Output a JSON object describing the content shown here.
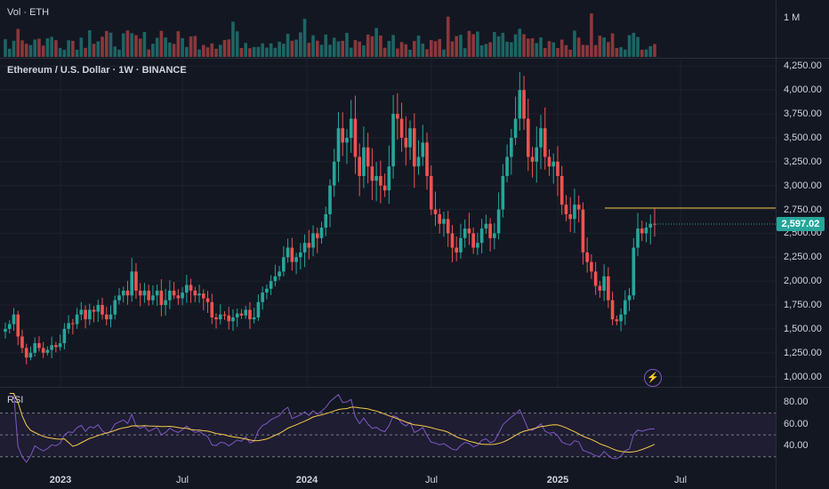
{
  "colors": {
    "bg": "#131722",
    "up": "#26a69a",
    "down": "#ef5350",
    "grid": "#1e222d",
    "rsi": "#7e57c2",
    "rsi_ma": "#f7c948",
    "hline": "#f7c948"
  },
  "volume": {
    "label": "Vol · ETH",
    "scale_label": "1 M"
  },
  "symbol": {
    "title": "Ethereum / U.S. Dollar · 1W · BINANCE"
  },
  "price_axis": {
    "ticks": [
      "4,250.00",
      "4,000.00",
      "3,750.00",
      "3,500.00",
      "3,250.00",
      "3,000.00",
      "2,750.00",
      "2,500.00",
      "2,250.00",
      "2,000.00",
      "1,750.00",
      "1,500.00",
      "1,250.00",
      "1,000.00"
    ],
    "tick_values": [
      4250,
      4000,
      3750,
      3500,
      3250,
      3000,
      2750,
      2500,
      2250,
      2000,
      1750,
      1500,
      1250,
      1000
    ],
    "current_price": "2,597.02"
  },
  "horizontal_line": {
    "price": 2765
  },
  "rsi": {
    "label": "RSI",
    "ticks": [
      "80.00",
      "60.00",
      "40.00"
    ],
    "tick_values": [
      80,
      60,
      40
    ],
    "upper": 70,
    "middle": 50,
    "lower": 30
  },
  "time_axis": {
    "labels": [
      {
        "text": "2023",
        "bold": true
      },
      {
        "text": "Jul",
        "bold": false
      },
      {
        "text": "2024",
        "bold": true
      },
      {
        "text": "Jul",
        "bold": false
      },
      {
        "text": "2025",
        "bold": true
      },
      {
        "text": "Jul",
        "bold": false
      }
    ]
  },
  "icons": {
    "replay": "lightning-replay-icon"
  },
  "chart_data": {
    "type": "candlestick",
    "title": "Ethereum / U.S. Dollar · 1W · BINANCE",
    "ylim": [
      950,
      4300
    ],
    "closes": [
      1500,
      1550,
      1650,
      1420,
      1300,
      1200,
      1250,
      1350,
      1300,
      1250,
      1280,
      1330,
      1310,
      1350,
      1500,
      1560,
      1550,
      1650,
      1700,
      1600,
      1700,
      1680,
      1750,
      1650,
      1600,
      1650,
      1800,
      1850,
      1900,
      1850,
      2100,
      1900,
      1850,
      1900,
      1800,
      1850,
      1900,
      1750,
      1800,
      1900,
      1850,
      1820,
      1880,
      1960,
      1900,
      1850,
      1870,
      1820,
      1780,
      1620,
      1600,
      1650,
      1640,
      1580,
      1620,
      1660,
      1640,
      1700,
      1600,
      1620,
      1780,
      1880,
      1920,
      2000,
      2050,
      2100,
      2250,
      2350,
      2200,
      2250,
      2300,
      2400,
      2350,
      2500,
      2450,
      2560,
      2700,
      3000,
      3250,
      3600,
      3450,
      3500,
      3700,
      3300,
      3100,
      3400,
      3200,
      3050,
      3100,
      3000,
      2950,
      3200,
      3750,
      3700,
      3500,
      3400,
      3600,
      3200,
      3300,
      3450,
      3100,
      2750,
      2700,
      2600,
      2650,
      2500,
      2350,
      2300,
      2450,
      2550,
      2500,
      2350,
      2400,
      2550,
      2600,
      2450,
      2500,
      2750,
      3100,
      3300,
      3500,
      3700,
      4000,
      3700,
      3300,
      3250,
      3400,
      3600,
      3300,
      3200,
      3250,
      3100,
      2800,
      2700,
      2650,
      2800,
      2750,
      2300,
      2200,
      2100,
      1950,
      1900,
      2050,
      1800,
      1600,
      1580,
      1650,
      1800,
      1850,
      2350,
      2550,
      2500,
      2560,
      2600,
      2597
    ]
  }
}
